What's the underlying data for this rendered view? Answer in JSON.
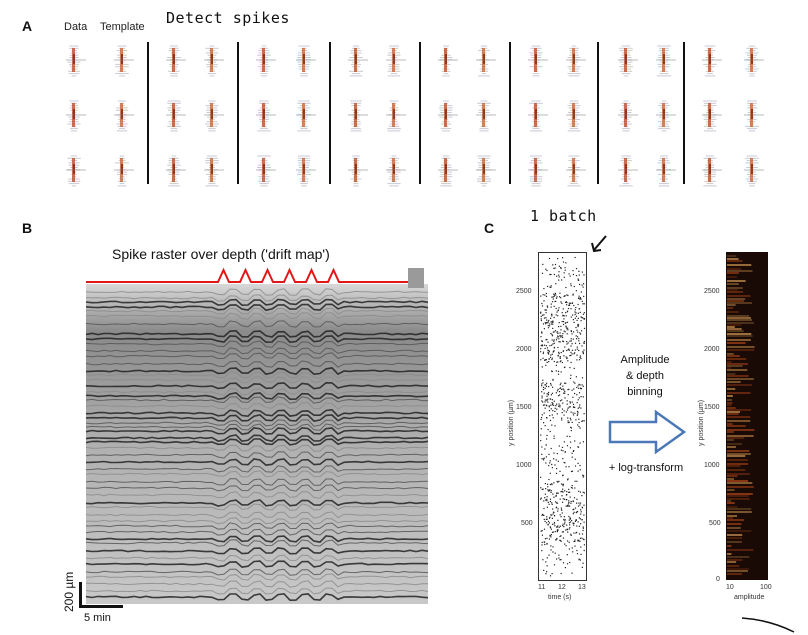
{
  "panel_a": {
    "letter": "A",
    "label_data": "Data",
    "label_template": "Template",
    "annotation": "Detect spikes"
  },
  "panel_b": {
    "letter": "B",
    "title": "Spike raster over depth ('drift map')",
    "scalebar_y": "200 µm",
    "scalebar_x": "5 min",
    "colors": {
      "drift_trace": "#e01818"
    }
  },
  "panel_c": {
    "letter": "C",
    "annotation_batch": "1 batch",
    "arrow_text_1": "Amplitude",
    "arrow_text_2": "& depth",
    "arrow_text_3": "binning",
    "arrow_text_4": "+ log-transform",
    "left_plot": {
      "ylabel": "y position (µm)",
      "xlabel": "time (s)",
      "yticks": [
        "2500",
        "2000",
        "1500",
        "1000",
        "500"
      ],
      "xticks": [
        "11",
        "12",
        "13"
      ]
    },
    "right_plot": {
      "ylabel": "y position (µm)",
      "xlabel": "amplitude",
      "yticks": [
        "2500",
        "2000",
        "1500",
        "1000",
        "500",
        "0"
      ],
      "xticks": [
        "10",
        "100"
      ]
    },
    "colors": {
      "arrow": "#4a78b8",
      "heatmap_bg": "#1a0a05",
      "heatmap_hot": "#f0b060"
    }
  }
}
